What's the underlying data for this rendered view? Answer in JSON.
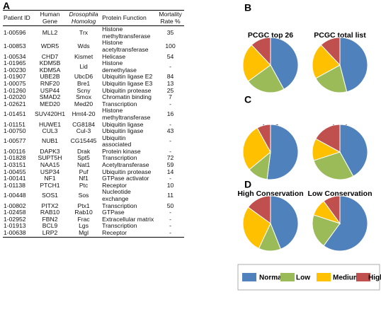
{
  "panel_labels": [
    "A",
    "B",
    "C",
    "D"
  ],
  "table": {
    "header": [
      "Patient ID",
      "Human Gene",
      "Drosophila Homolog",
      "Protein Function",
      "Mortality Rate %"
    ],
    "rows": [
      [
        "1-00596",
        "MLL2",
        "Trx",
        "Histone methyltransferase",
        35
      ],
      [
        "1-00853",
        "WDR5",
        "Wds",
        "Histone acetyltransferase",
        100
      ],
      [
        "1-00534",
        "CHD7",
        "Kismet",
        "Helicase",
        54
      ],
      [
        [
          "1-01965",
          "1-00230"
        ],
        [
          "KDM5B",
          "KDM5A"
        ],
        "Lid",
        "Histone demethylase",
        "-"
      ],
      [
        "1-01907",
        "UBE2B",
        "UbcD6",
        "Ubiquitin ligase E2",
        84
      ],
      [
        "1-00075",
        "RNF20",
        "Bre1",
        "Ubiquitin ligase E3",
        13
      ],
      [
        "1-01260",
        "USP44",
        "Scny",
        "Ubiquitin protease",
        25
      ],
      [
        "1-02020",
        "SMAD2",
        "Smox",
        "Chromatin binding",
        7
      ],
      [
        "1-02621",
        "MED20",
        "Med20",
        "Transcription",
        "-"
      ],
      [
        "1-01451",
        "SUV420H1",
        "Hmt4-20",
        "Histone methyltransferase",
        16
      ],
      [
        "1-01151",
        "HUWE1",
        "CG8184",
        "Ubiquitin ligase",
        "-"
      ],
      [
        "1-00750",
        "CUL3",
        "Cul-3",
        "Ubiquitin ligase",
        43
      ],
      [
        "1-00577",
        "NUB1",
        "CG15445",
        "Ubiquitin associated",
        "-"
      ],
      [
        "1-00116",
        "DAPK3",
        "Drak",
        "Protein kinase",
        "-"
      ],
      [
        "1-01828",
        "SUPT5H",
        "Spt5",
        "Transcription",
        72
      ],
      [
        "1-03151",
        "NAA15",
        "Nat1",
        "Acetyltransferase",
        59
      ],
      [
        "1-00455",
        "USP34",
        "Puf",
        "Ubiquitin protease",
        14
      ],
      [
        "1-00141",
        "NF1",
        "Nf1",
        "GTPase activator",
        "-"
      ],
      [
        "1-01138",
        "PTCH1",
        "Ptc",
        "Receptor",
        10
      ],
      [
        "1-00448",
        "SOS1",
        "Sos",
        "Nucleotide exchange",
        11
      ],
      [
        "1-00802",
        "PITX2",
        "Ptx1",
        "Transcription",
        50
      ],
      [
        "1-02458",
        "RAB10",
        "Rab10",
        "GTPase",
        "-"
      ],
      [
        "1-02952",
        "FBN2",
        "Frac",
        "Extracellular matrix",
        "-"
      ],
      [
        "1-01913",
        "BCL9",
        "Lgs",
        "Transcription",
        "-"
      ],
      [
        "1-00638",
        "LRP2",
        "Mgl",
        "Receptor",
        "-"
      ]
    ]
  },
  "chart_data": [
    {
      "type": "pie",
      "title": "PCGC top 26",
      "categories": [
        "Normal",
        "Low",
        "Medium",
        "High"
      ],
      "values": [
        42,
        23,
        23,
        12
      ],
      "colors": [
        "#4f81bd",
        "#9bbb59",
        "#ffc000",
        "#c0504d"
      ]
    },
    {
      "type": "pie",
      "title": "PCGC total list",
      "categories": [
        "Normal",
        "Low",
        "Medium",
        "High"
      ],
      "values": [
        46,
        21,
        21,
        12
      ],
      "colors": [
        "#4f81bd",
        "#9bbb59",
        "#ffc000",
        "#c0504d"
      ]
    },
    {
      "type": "pie",
      "title": "HHE",
      "categories": [
        "Normal",
        "Low",
        "Medium",
        "High"
      ],
      "values": [
        52,
        12,
        28,
        8
      ],
      "colors": [
        "#4f81bd",
        "#9bbb59",
        "#ffc000",
        "#c0504d"
      ]
    },
    {
      "type": "pie",
      "title": "LHE",
      "categories": [
        "Normal",
        "Low",
        "Medium",
        "High"
      ],
      "values": [
        42,
        28,
        13,
        17
      ],
      "colors": [
        "#4f81bd",
        "#9bbb59",
        "#ffc000",
        "#c0504d"
      ]
    },
    {
      "type": "pie",
      "title": "High Conservation",
      "categories": [
        "Normal",
        "Low",
        "Medium",
        "High"
      ],
      "values": [
        44,
        13,
        28,
        15
      ],
      "colors": [
        "#4f81bd",
        "#9bbb59",
        "#ffc000",
        "#c0504d"
      ]
    },
    {
      "type": "pie",
      "title": "Low Conservation",
      "categories": [
        "Normal",
        "Low",
        "Medium",
        "High"
      ],
      "values": [
        60,
        20,
        10,
        10
      ],
      "colors": [
        "#4f81bd",
        "#9bbb59",
        "#ffc000",
        "#c0504d"
      ]
    }
  ]
}
